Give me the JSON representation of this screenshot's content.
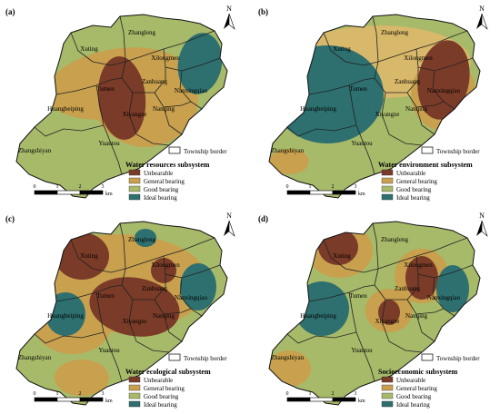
{
  "colors": {
    "unbearable": "#7a3b28",
    "general": "#c8a04e",
    "good": "#a7ba6a",
    "ideal": "#2e6f6f",
    "general_light": "#d8b86a",
    "good_light": "#b9c57a"
  },
  "legend_categories": [
    "Unbearable",
    "General bearing",
    "Good bearing",
    "Ideal bearing"
  ],
  "township_border_label": "Township border",
  "north_label": "N",
  "scale": {
    "ticks": [
      "0",
      "1",
      "2",
      "3"
    ],
    "unit": "km"
  },
  "townships": [
    "Xuting",
    "Zhangleng",
    "Xilongmen",
    "Zanhuang",
    "Tumen",
    "Huangbeiping",
    "Xiyangze",
    "Nanqing",
    "Nanxingqiao",
    "Yuantou",
    "Zhangshiyan"
  ],
  "panels": [
    {
      "id": "a",
      "label": "(a)",
      "subsystem": "Water resources subsystem",
      "township_labels": [
        "Xuting",
        "Zhangleng",
        "Xilongmen",
        "Zanhuang",
        "Tumen",
        "Huangbeiping",
        "Xiyangze",
        "Nanqing",
        "Nanxingqiao",
        "Yuantou",
        "Zhangshiyan"
      ]
    },
    {
      "id": "b",
      "label": "(b)",
      "subsystem": "Water environment subsystem",
      "township_labels": [
        "Xuting",
        "Zhangleng",
        "Xilongmen",
        "Zanhuang",
        "Tumen",
        "Huangbeiping",
        "Xiyangze",
        "Nanqing",
        "Nanxingqiao",
        "Yuantou",
        "Zhangshiyan"
      ]
    },
    {
      "id": "c",
      "label": "(c)",
      "subsystem": "Water ecological subsystem",
      "township_labels": [
        "Xuting",
        "Zhangleng",
        "Xilongmen",
        "Zanhuang",
        "Tumen",
        "Huangbeiping",
        "Xiyangze",
        "Nanqing",
        "Nanxingqiao",
        "Yuantou",
        "Zhangshiyan"
      ]
    },
    {
      "id": "d",
      "label": "(d)",
      "subsystem": "Socioeconomic subsystem",
      "township_labels": [
        "Xuting",
        "Zhangleng",
        "Xilongmen",
        "Zanhuang",
        "Tumen",
        "Huangbeiping",
        "Xiyangze",
        "Nanqing",
        "Nanxingqiao",
        "Yuantou",
        "Zhangshiyan"
      ]
    }
  ]
}
